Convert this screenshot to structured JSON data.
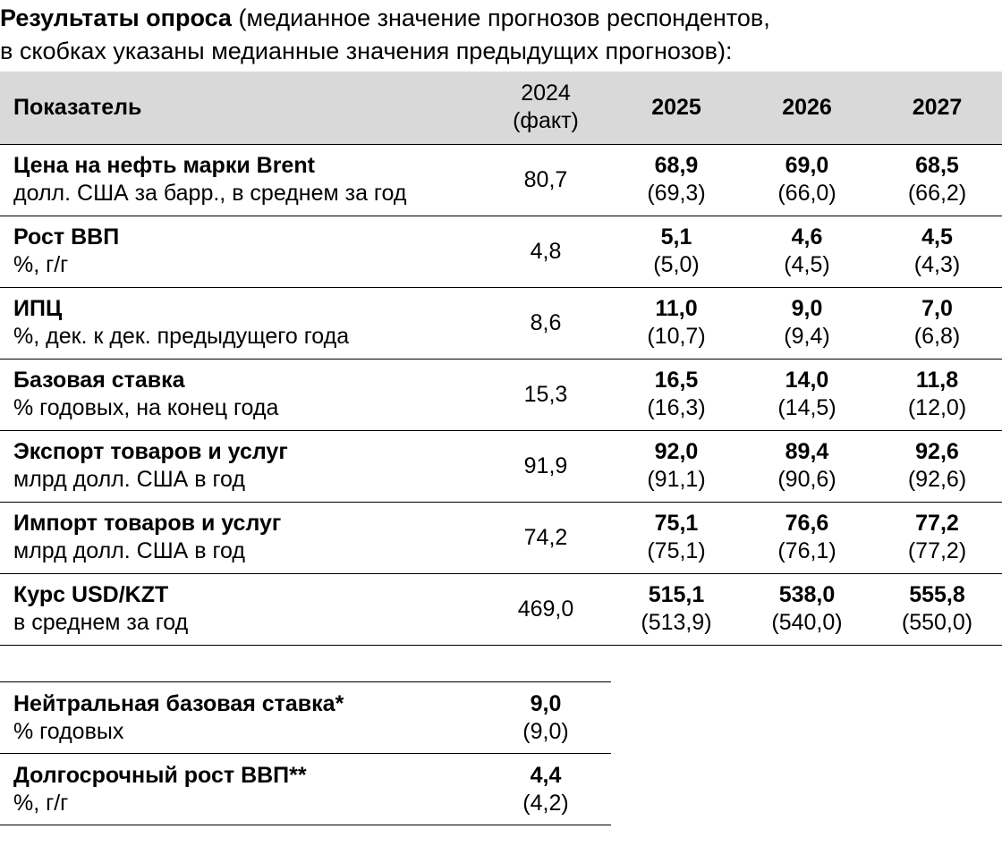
{
  "heading": {
    "bold": "Результаты опроса",
    "line1": " (медианное значение прогнозов респондентов,",
    "line2": "в скобках указаны медианные значения предыдущих прогнозов):"
  },
  "table": {
    "headers": [
      "Показатель",
      "2024",
      "(факт)",
      "2025",
      "2026",
      "2027"
    ],
    "rows": [
      {
        "name": "Цена на нефть марки Brent",
        "unit": "долл. США за барр., в среднем за год",
        "fact": "80,7",
        "forecasts": [
          {
            "v": "68,9",
            "p": "(69,3)"
          },
          {
            "v": "69,0",
            "p": "(66,0)"
          },
          {
            "v": "68,5",
            "p": "(66,2)"
          }
        ]
      },
      {
        "name": "Рост ВВП",
        "unit": "%, г/г",
        "fact": "4,8",
        "forecasts": [
          {
            "v": "5,1",
            "p": "(5,0)"
          },
          {
            "v": "4,6",
            "p": "(4,5)"
          },
          {
            "v": "4,5",
            "p": "(4,3)"
          }
        ]
      },
      {
        "name": "ИПЦ",
        "unit": "%, дек. к дек. предыдущего года",
        "fact": "8,6",
        "forecasts": [
          {
            "v": "11,0",
            "p": "(10,7)"
          },
          {
            "v": "9,0",
            "p": "(9,4)"
          },
          {
            "v": "7,0",
            "p": "(6,8)"
          }
        ]
      },
      {
        "name": "Базовая ставка",
        "unit": "% годовых, на конец года",
        "fact": "15,3",
        "forecasts": [
          {
            "v": "16,5",
            "p": "(16,3)"
          },
          {
            "v": "14,0",
            "p": "(14,5)"
          },
          {
            "v": "11,8",
            "p": "(12,0)"
          }
        ]
      },
      {
        "name": "Экспорт товаров и услуг",
        "unit": "млрд долл. США в год",
        "fact": "91,9",
        "forecasts": [
          {
            "v": "92,0",
            "p": "(91,1)"
          },
          {
            "v": "89,4",
            "p": "(90,6)"
          },
          {
            "v": "92,6",
            "p": "(92,6)"
          }
        ]
      },
      {
        "name": "Импорт товаров и услуг",
        "unit": "млрд долл. США в год",
        "fact": "74,2",
        "forecasts": [
          {
            "v": "75,1",
            "p": "(75,1)"
          },
          {
            "v": "76,6",
            "p": "(76,1)"
          },
          {
            "v": "77,2",
            "p": "(77,2)"
          }
        ]
      },
      {
        "name": "Курс USD/KZT",
        "unit": "в среднем за год",
        "fact": "469,0",
        "forecasts": [
          {
            "v": "515,1",
            "p": "(513,9)"
          },
          {
            "v": "538,0",
            "p": "(540,0)"
          },
          {
            "v": "555,8",
            "p": "(550,0)"
          }
        ]
      }
    ]
  },
  "extra": [
    {
      "name": "Нейтральная базовая ставка*",
      "unit": "% годовых",
      "v": "9,0",
      "p": "(9,0)"
    },
    {
      "name": "Долгосрочный рост ВВП**",
      "unit": "%, г/г",
      "v": "4,4",
      "p": "(4,2)"
    }
  ]
}
